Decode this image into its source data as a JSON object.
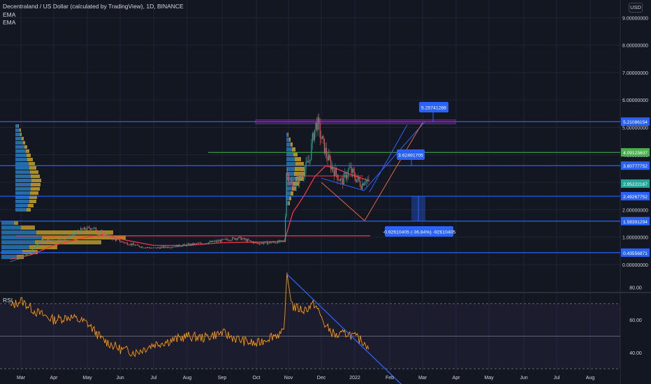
{
  "header": {
    "symbol_line": "Decentraland / US Dollar (calculated by TradingView), 1D, BINANCE",
    "indicator_1": "EMA",
    "indicator_2": "EMA"
  },
  "currency_button": "USD",
  "rsi_pane": {
    "label": "RSI",
    "ticks": [
      "80.00",
      "60.00",
      "40.00"
    ],
    "levels": [
      70,
      50,
      30
    ]
  },
  "colors": {
    "background": "#131722",
    "grid": "#1f2433",
    "text": "#d1d4dc",
    "blue_level": "#2962ff",
    "green_level": "#4caf50",
    "red_level": "#f23645",
    "ema_red": "#f23645",
    "rsi_line": "#ff9800",
    "rsi_trend": "#2962ff",
    "volume_profile_blue": "#2a7bbd",
    "volume_profile_orange": "#c9a227",
    "projection_blue": "#2962ff",
    "projection_orange": "#e5633c",
    "candle_up": "#26a69a",
    "candle_down": "#ef5350",
    "current_price": "#26a69a"
  },
  "chart_data": {
    "type": "candlestick",
    "title": "Decentraland / US Dollar (calculated by TradingView), 1D, BINANCE",
    "x_ticks": [
      "Mar",
      "Apr",
      "May",
      "Jun",
      "Jul",
      "Aug",
      "Sep",
      "Oct",
      "Nov",
      "Dec",
      "2022",
      "Feb",
      "Mar",
      "Apr",
      "May",
      "Jun",
      "Jul",
      "Aug"
    ],
    "y_ticks": [
      "9.00000000",
      "8.00000000",
      "7.00000000",
      "6.00000000",
      "5.00000000",
      "4.00000000",
      "3.00000000",
      "2.00000000",
      "1.00000000",
      "0.00000000"
    ],
    "ylim": [
      -0.6,
      9.4
    ],
    "horizontal_levels": [
      {
        "value": 5.21086154,
        "label": "5.21086154",
        "color": "blue"
      },
      {
        "value": 4.09123607,
        "label": "4.09123607",
        "color": "green"
      },
      {
        "value": 3.60777752,
        "label": "3.60777752",
        "color": "blue"
      },
      {
        "value": 2.95222167,
        "label": "2.95222167",
        "color": "current"
      },
      {
        "value": 2.49267752,
        "label": "2.49267752",
        "color": "blue"
      },
      {
        "value": 1.58391294,
        "label": "1.58391294",
        "color": "blue"
      },
      {
        "value": 0.43556871,
        "label": "0.43556871",
        "color": "blue"
      }
    ],
    "red_level": 1.05,
    "annotations": [
      {
        "label": "5.25741288"
      },
      {
        "label": "3.62491705"
      },
      {
        "label": "-0.92610405 (-36.84%) -92610405"
      }
    ],
    "price_series_approx": [
      [
        "Feb 20",
        0.12
      ],
      [
        "Mar 1",
        0.25
      ],
      [
        "Mar 10",
        0.45
      ],
      [
        "Mar 20",
        0.9
      ],
      [
        "Apr 1",
        0.85
      ],
      [
        "Apr 15",
        1.0
      ],
      [
        "Apr 25",
        1.25
      ],
      [
        "May 5",
        1.35
      ],
      [
        "May 15",
        1.15
      ],
      [
        "May 25",
        0.95
      ],
      [
        "Jun 5",
        0.8
      ],
      [
        "Jun 20",
        0.65
      ],
      [
        "Jul 1",
        0.6
      ],
      [
        "Jul 15",
        0.65
      ],
      [
        "Aug 1",
        0.72
      ],
      [
        "Aug 15",
        0.78
      ],
      [
        "Sep 1",
        0.88
      ],
      [
        "Sep 15",
        0.98
      ],
      [
        "Oct 1",
        0.78
      ],
      [
        "Oct 15",
        0.8
      ],
      [
        "Oct 28",
        0.85
      ],
      [
        "Oct 29",
        1.8
      ],
      [
        "Oct 30",
        3.4
      ],
      [
        "Nov 1",
        3.2
      ],
      [
        "Nov 5",
        2.8
      ],
      [
        "Nov 10",
        3.1
      ],
      [
        "Nov 15",
        3.4
      ],
      [
        "Nov 20",
        3.8
      ],
      [
        "Nov 24",
        4.8
      ],
      [
        "Nov 27",
        5.2
      ],
      [
        "Dec 1",
        4.6
      ],
      [
        "Dec 5",
        4.1
      ],
      [
        "Dec 10",
        3.6
      ],
      [
        "Dec 15",
        3.3
      ],
      [
        "Dec 20",
        3.0
      ],
      [
        "Dec 27",
        3.5
      ],
      [
        "Jan 1",
        3.2
      ],
      [
        "Jan 7",
        2.9
      ],
      [
        "Jan 10",
        3.15
      ],
      [
        "Jan 14",
        2.95
      ]
    ],
    "rsi_series_approx": [
      [
        "Feb 20",
        68
      ],
      [
        "Mar 1",
        72
      ],
      [
        "Mar 15",
        65
      ],
      [
        "Apr 1",
        60
      ],
      [
        "Apr 15",
        62
      ],
      [
        "May 1",
        58
      ],
      [
        "May 15",
        48
      ],
      [
        "Jun 1",
        42
      ],
      [
        "Jun 15",
        40
      ],
      [
        "Jul 1",
        45
      ],
      [
        "Jul 15",
        47
      ],
      [
        "Aug 1",
        50
      ],
      [
        "Aug 15",
        49
      ],
      [
        "Sep 1",
        52
      ],
      [
        "Sep 15",
        48
      ],
      [
        "Oct 1",
        45
      ],
      [
        "Oct 15",
        50
      ],
      [
        "Oct 28",
        52
      ],
      [
        "Oct 30",
        88
      ],
      [
        "Nov 5",
        68
      ],
      [
        "Nov 15",
        66
      ],
      [
        "Nov 25",
        70
      ],
      [
        "Dec 5",
        56
      ],
      [
        "Dec 15",
        50
      ],
      [
        "Dec 25",
        52
      ],
      [
        "Jan 5",
        48
      ],
      [
        "Jan 14",
        44
      ]
    ]
  }
}
